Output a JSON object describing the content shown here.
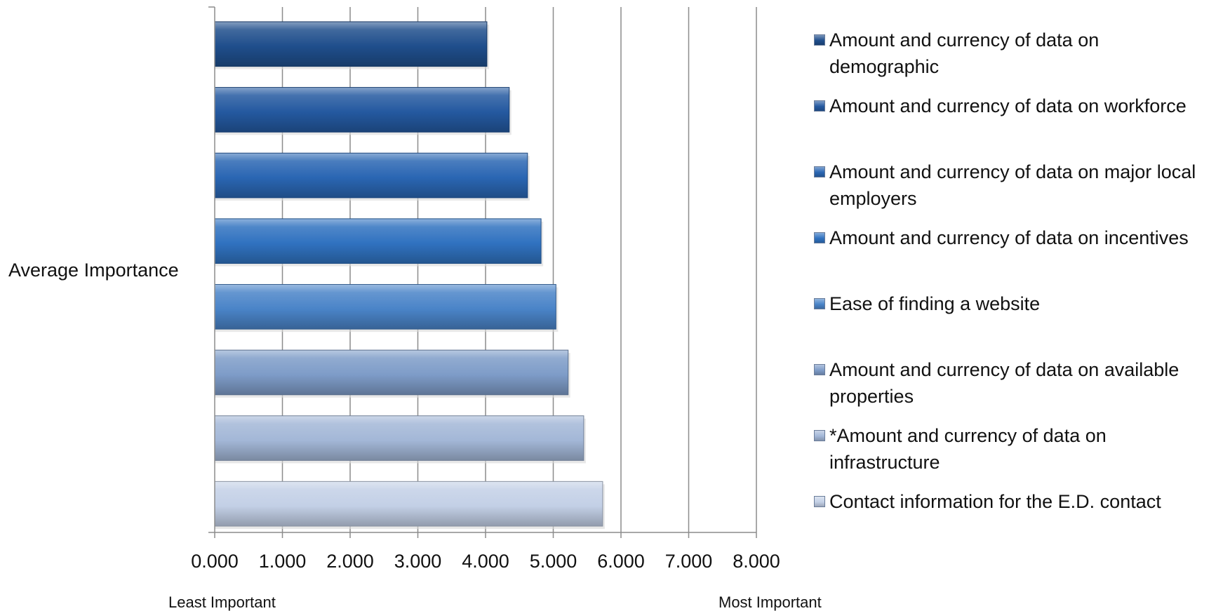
{
  "chart_data": {
    "type": "bar",
    "orientation": "horizontal",
    "category_axis_label": "Average Importance",
    "x_ticks": [
      "0.000",
      "1.000",
      "2.000",
      "3.000",
      "4.000",
      "5.000",
      "6.000",
      "7.000",
      "8.000"
    ],
    "xlim": [
      0,
      8
    ],
    "grid": "vertical gridlines",
    "legend_position": "right",
    "x_notes": {
      "left": "Least Important",
      "right": "Most Important"
    },
    "series": [
      {
        "name": "Amount and currency of data on demographic",
        "value": 4.02,
        "color": "#1f4e8c"
      },
      {
        "name": "Amount and currency of data on workforce",
        "value": 4.35,
        "color": "#2459a0"
      },
      {
        "name": "Amount and currency of data on major local employers",
        "value": 4.62,
        "color": "#2a66b3"
      },
      {
        "name": "Amount and currency of data on incentives",
        "value": 4.82,
        "color": "#3072c0"
      },
      {
        "name": "Ease of finding a website",
        "value": 5.04,
        "color": "#4a84c8"
      },
      {
        "name": "Amount and currency of data on available properties",
        "value": 5.22,
        "color": "#7e9cc8"
      },
      {
        "name": "*Amount and currency of data on infrastructure",
        "value": 5.45,
        "color": "#a3b7d7"
      },
      {
        "name": "Contact information for the E.D. contact",
        "value": 5.73,
        "color": "#c3d0e6"
      }
    ]
  }
}
